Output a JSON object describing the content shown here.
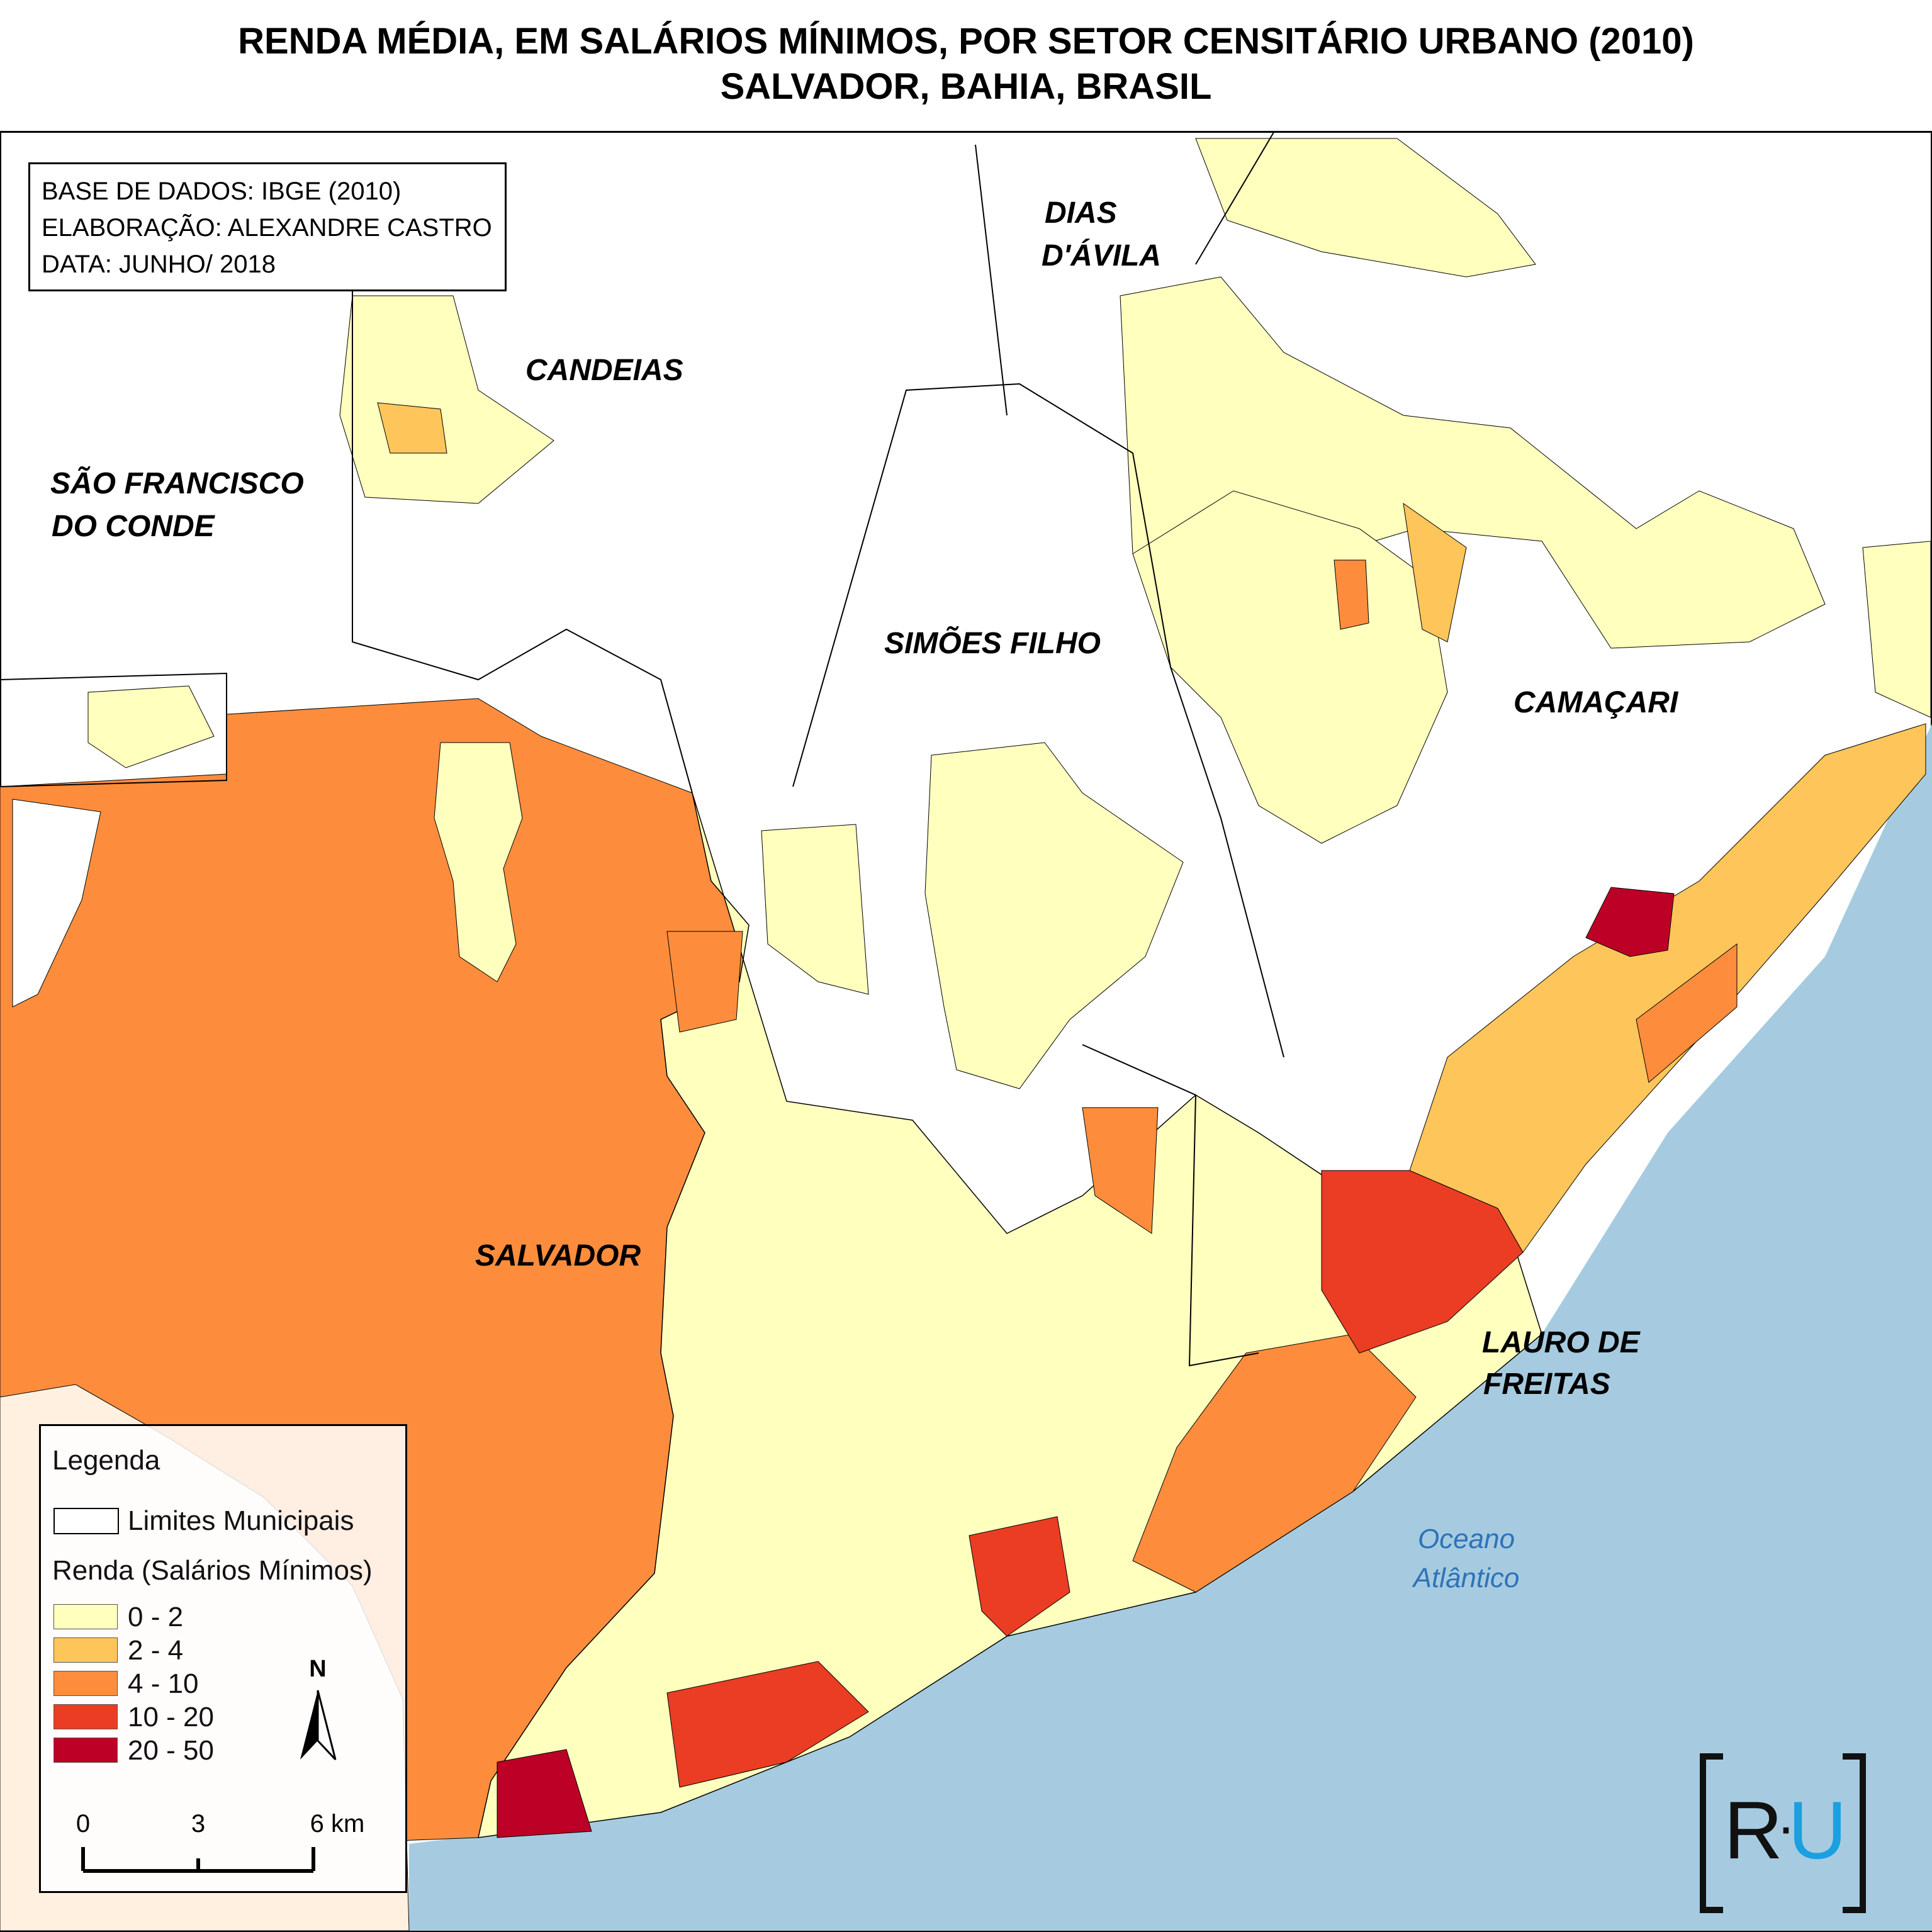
{
  "title": {
    "line1": "RENDA MÉDIA, EM SALÁRIOS MÍNIMOS, POR SETOR CENSITÁRIO URBANO (2010)",
    "line2": "SALVADOR, BAHIA, BRASIL"
  },
  "info": {
    "source": "BASE DE DADOS: IBGE (2010)",
    "author": "ELABORAÇÃO: ALEXANDRE CASTRO",
    "date": "DATA: JUNHO/ 2018"
  },
  "municipalities": {
    "candeias": "CANDEIAS",
    "dias_davila_1": "DIAS",
    "dias_davila_2": "D'ÁVILA",
    "sao_francisco_1": "SÃO FRANCISCO",
    "sao_francisco_2": "DO CONDE",
    "simoes_filho": "SIMÕES FILHO",
    "camacari": "CAMAÇARI",
    "salvador": "SALVADOR",
    "lauro_1": "LAURO DE",
    "lauro_2": "FREITAS"
  },
  "ocean": {
    "line1": "Oceano",
    "line2": "Atlântico"
  },
  "legend": {
    "title": "Legenda",
    "boundary_label": "Limites Municipais",
    "renda_title": "Renda (Salários Mínimos)",
    "classes": [
      {
        "label": "0 - 2",
        "color": "#ffffbe"
      },
      {
        "label": "2 - 4",
        "color": "#fec55a"
      },
      {
        "label": "4 - 10",
        "color": "#fd8d3c"
      },
      {
        "label": "10 - 20",
        "color": "#ea3d23"
      },
      {
        "label": "20 - 50",
        "color": "#bd0026"
      }
    ]
  },
  "north_arrow": {
    "label": "N"
  },
  "scale": {
    "ticks": [
      "0",
      "3",
      "6 km"
    ]
  },
  "logo": {
    "left": "R",
    "dot": "·",
    "right": "U"
  },
  "colors": {
    "sea": "#a6cbe0",
    "boundary": "#000000",
    "logo_accent": "#1aa0e0"
  }
}
